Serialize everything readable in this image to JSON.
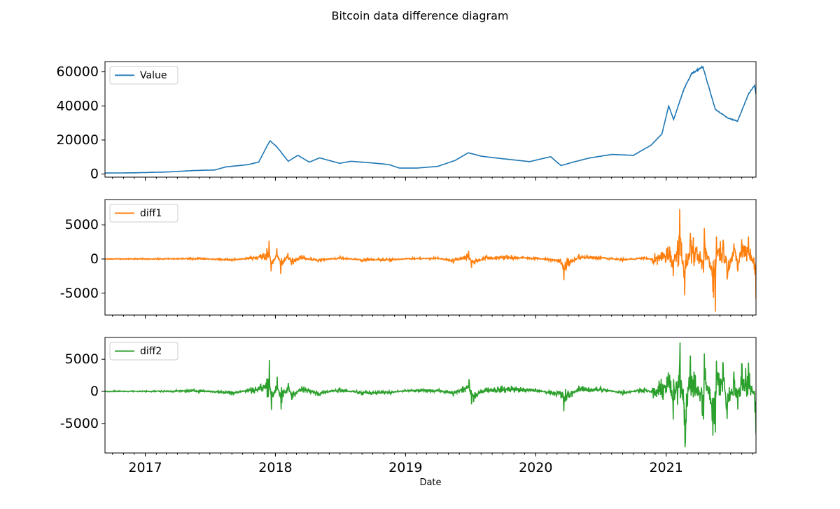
{
  "chart_data": {
    "type": "line",
    "title": "Bitcoin data difference diagram",
    "xlabel": "Date",
    "x_range": [
      "2016-09-10",
      "2021-09-10"
    ],
    "x_major_ticks": [
      "2017-01-01",
      "2018-01-01",
      "2019-01-01",
      "2020-01-01",
      "2021-01-01"
    ],
    "x_major_tick_labels": [
      "2017",
      "2018",
      "2019",
      "2020",
      "2021"
    ],
    "grid": false,
    "legend_position": "upper left",
    "panels": [
      {
        "series_name": "Value",
        "color": "#1f77b4",
        "ylim": [
          -1800,
          66000
        ],
        "yticks": [
          0,
          20000,
          40000,
          60000
        ],
        "ytick_labels": [
          "0",
          "20000",
          "40000",
          "60000"
        ],
        "x": [
          "2016-09-10",
          "2016-12-01",
          "2017-03-01",
          "2017-05-20",
          "2017-07-15",
          "2017-08-15",
          "2017-10-15",
          "2017-11-15",
          "2017-12-10",
          "2017-12-17",
          "2018-01-05",
          "2018-02-06",
          "2018-03-05",
          "2018-04-06",
          "2018-05-05",
          "2018-06-30",
          "2018-08-01",
          "2018-10-01",
          "2018-11-15",
          "2018-12-15",
          "2019-02-01",
          "2019-04-01",
          "2019-05-20",
          "2019-06-26",
          "2019-08-01",
          "2019-10-01",
          "2019-12-15",
          "2020-02-12",
          "2020-03-12",
          "2020-04-15",
          "2020-06-01",
          "2020-08-01",
          "2020-10-01",
          "2020-11-20",
          "2020-12-20",
          "2021-01-08",
          "2021-01-22",
          "2021-02-20",
          "2021-03-13",
          "2021-04-14",
          "2021-05-19",
          "2021-06-22",
          "2021-07-20",
          "2021-08-20",
          "2021-09-06",
          "2021-09-10"
        ],
        "values": [
          600,
          750,
          1200,
          2100,
          2400,
          4200,
          5500,
          7000,
          17000,
          19500,
          16000,
          7500,
          11000,
          7000,
          9500,
          6300,
          7500,
          6500,
          5600,
          3500,
          3500,
          4500,
          8000,
          12500,
          10500,
          9000,
          7300,
          10200,
          5000,
          7000,
          9500,
          11500,
          11000,
          17000,
          23500,
          40000,
          32000,
          50000,
          59000,
          63000,
          38000,
          33000,
          31000,
          47000,
          52000,
          47000
        ]
      },
      {
        "series_name": "diff1",
        "color": "#ff7f0e",
        "ylim": [
          -8200,
          8700
        ],
        "yticks": [
          -5000,
          0,
          5000
        ],
        "ytick_labels": [
          "-5000",
          "0",
          "5000"
        ],
        "x": [
          "2016-09-10",
          "2017-03-01",
          "2017-06-01",
          "2017-09-01",
          "2017-11-20",
          "2017-12-08",
          "2017-12-14",
          "2017-12-20",
          "2018-01-05",
          "2018-01-16",
          "2018-02-05",
          "2018-02-15",
          "2018-03-15",
          "2018-05-01",
          "2018-07-01",
          "2018-09-01",
          "2018-11-20",
          "2019-01-01",
          "2019-04-02",
          "2019-05-15",
          "2019-06-27",
          "2019-07-05",
          "2019-08-15",
          "2019-10-25",
          "2020-01-01",
          "2020-03-12",
          "2020-03-20",
          "2020-05-01",
          "2020-07-01",
          "2020-09-01",
          "2020-11-01",
          "2020-12-01",
          "2021-01-03",
          "2021-01-11",
          "2021-01-21",
          "2021-02-08",
          "2021-02-22",
          "2021-03-10",
          "2021-04-16",
          "2021-04-18",
          "2021-05-12",
          "2021-05-19",
          "2021-05-22",
          "2021-06-10",
          "2021-06-21",
          "2021-07-10",
          "2021-07-21",
          "2021-08-01",
          "2021-08-20",
          "2021-09-07",
          "2021-09-10"
        ],
        "values": [
          0,
          40,
          180,
          -350,
          700,
          1600,
          2700,
          -1800,
          1600,
          -2200,
          900,
          -900,
          600,
          -500,
          400,
          -350,
          -300,
          100,
          250,
          -650,
          1200,
          -1300,
          400,
          600,
          300,
          -800,
          -3100,
          700,
          500,
          -300,
          350,
          -450,
          1600,
          1800,
          -2500,
          7300,
          -5300,
          3800,
          -2000,
          4500,
          -4800,
          -7700,
          3300,
          2800,
          -3000,
          2300,
          -1800,
          2900,
          3300,
          -2300,
          -5800
        ]
      },
      {
        "series_name": "diff2",
        "color": "#2ca02c",
        "ylim": [
          -9600,
          8400
        ],
        "yticks": [
          -5000,
          0,
          5000
        ],
        "ytick_labels": [
          "-5000",
          "0",
          "5000"
        ],
        "x": [
          "2016-09-10",
          "2017-03-01",
          "2017-06-01",
          "2017-09-01",
          "2017-11-20",
          "2017-12-08",
          "2017-12-15",
          "2017-12-21",
          "2018-01-06",
          "2018-01-17",
          "2018-02-06",
          "2018-02-16",
          "2018-03-16",
          "2018-05-01",
          "2018-07-01",
          "2018-09-01",
          "2018-11-20",
          "2019-01-01",
          "2019-04-02",
          "2019-05-15",
          "2019-06-28",
          "2019-07-05",
          "2019-08-15",
          "2019-10-25",
          "2020-01-01",
          "2020-03-12",
          "2020-03-20",
          "2020-05-01",
          "2020-07-01",
          "2020-09-01",
          "2020-11-01",
          "2020-12-01",
          "2021-01-03",
          "2021-01-11",
          "2021-01-21",
          "2021-02-09",
          "2021-02-23",
          "2021-03-10",
          "2021-04-16",
          "2021-04-18",
          "2021-05-12",
          "2021-05-19",
          "2021-05-22",
          "2021-06-10",
          "2021-06-21",
          "2021-07-10",
          "2021-07-21",
          "2021-08-01",
          "2021-08-20",
          "2021-09-07",
          "2021-09-10"
        ],
        "values": [
          0,
          60,
          250,
          -600,
          1100,
          2000,
          4900,
          -2900,
          2300,
          -2800,
          1300,
          -1300,
          800,
          -700,
          600,
          -600,
          -400,
          200,
          350,
          -800,
          1900,
          -2000,
          600,
          900,
          400,
          -1100,
          -3100,
          900,
          700,
          -500,
          600,
          -700,
          2300,
          2600,
          -4400,
          7600,
          -8700,
          5600,
          -4400,
          5900,
          -6900,
          -6400,
          4800,
          4300,
          -4300,
          3100,
          -2800,
          4400,
          4500,
          -3300,
          -6700
        ]
      }
    ]
  }
}
